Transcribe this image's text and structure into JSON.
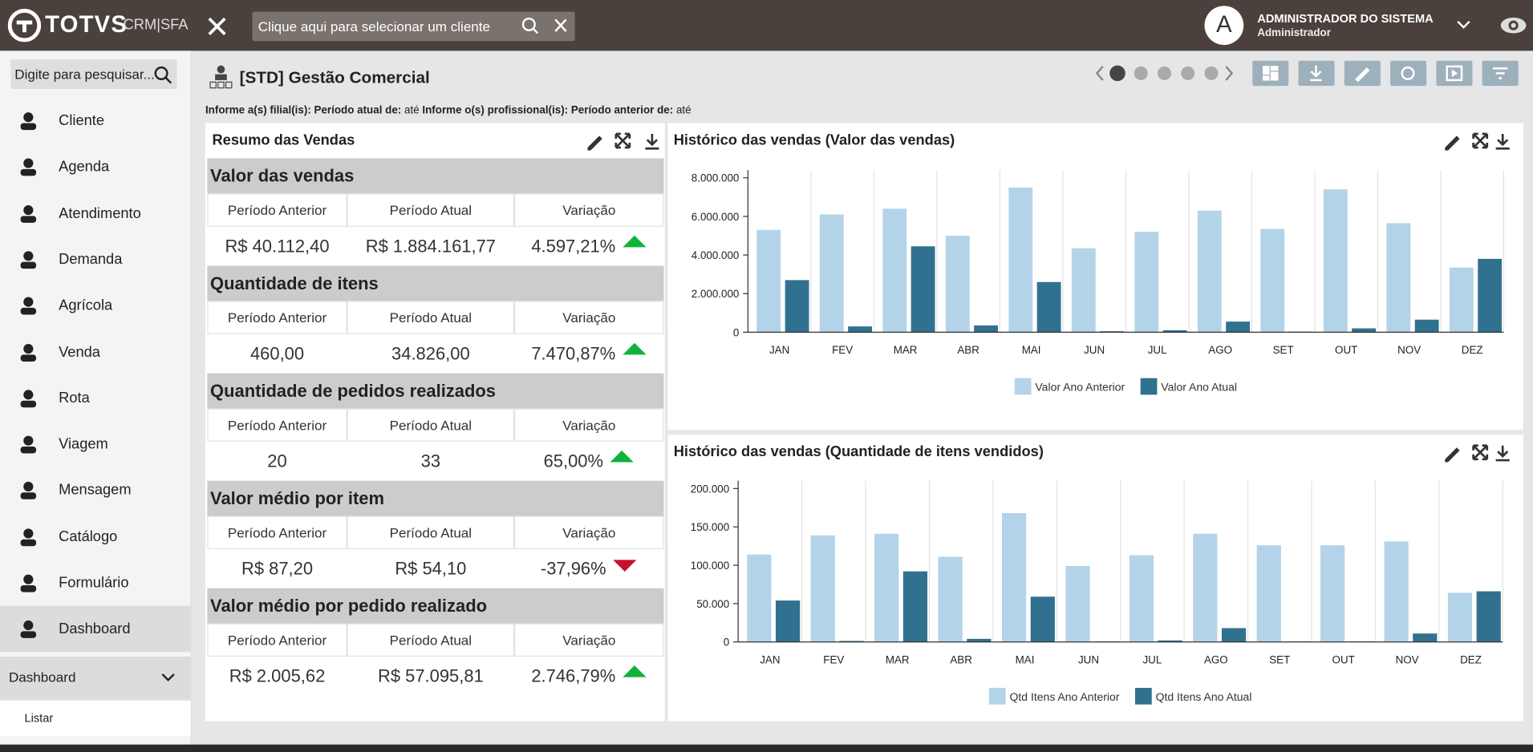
{
  "header": {
    "brand": "TOTVS",
    "product": "CRM|SFA",
    "client_search": "Clique aqui para selecionar um cliente",
    "user_name": "ADMINISTRADOR DO SISTEMA",
    "user_role": "Administrador",
    "avatar": "A"
  },
  "sidebar": {
    "search": "Digite para pesquisar...",
    "items": [
      "Cliente",
      "Agenda",
      "Atendimento",
      "Demanda",
      "Agrícola",
      "Venda",
      "Rota",
      "Viagem",
      "Mensagem",
      "Catálogo",
      "Formulário",
      "Dashboard"
    ],
    "submenu": {
      "title": "Dashboard",
      "items": [
        "Listar"
      ]
    }
  },
  "dashboard": {
    "title": "[STD] Gestão Comercial",
    "filters": [
      {
        "label": "Informe a(s) filial(is): Período atual de:",
        "value": "até"
      },
      {
        "label": "Informe o(s) profissional(is): Período anterior de:",
        "value": "até"
      }
    ]
  },
  "summary": {
    "title": "Resumo das Vendas",
    "columns": [
      "Período Anterior",
      "Período Atual",
      "Variação"
    ],
    "sections": [
      {
        "title": "Valor das vendas",
        "previous": "R$ 40.112,40",
        "current": "R$ 1.884.161,77",
        "variation": "4.597,21%",
        "trend": "up"
      },
      {
        "title": "Quantidade de itens",
        "previous": "460,00",
        "current": "34.826,00",
        "variation": "7.470,87%",
        "trend": "up"
      },
      {
        "title": "Quantidade de pedidos realizados",
        "previous": "20",
        "current": "33",
        "variation": "65,00%",
        "trend": "up"
      },
      {
        "title": "Valor médio por item",
        "previous": "R$ 87,20",
        "current": "R$ 54,10",
        "variation": "-37,96%",
        "trend": "down"
      },
      {
        "title": "Valor médio por pedido realizado",
        "previous": "R$ 2.005,62",
        "current": "R$ 57.095,81",
        "variation": "2.746,79%",
        "trend": "up"
      }
    ]
  },
  "chart_data": [
    {
      "type": "bar",
      "title": "Histórico das vendas (Valor das vendas)",
      "categories": [
        "JAN",
        "FEV",
        "MAR",
        "ABR",
        "MAI",
        "JUN",
        "JUL",
        "AGO",
        "SET",
        "OUT",
        "NOV",
        "DEZ"
      ],
      "series": [
        {
          "name": "Valor Ano Anterior",
          "color": "#b3d3e8",
          "values": [
            5300000,
            6100000,
            6400000,
            5000000,
            7500000,
            4350000,
            5200000,
            6300000,
            5350000,
            7400000,
            5650000,
            3350000
          ]
        },
        {
          "name": "Valor Ano Atual",
          "color": "#30718f",
          "values": [
            2700000,
            300000,
            4450000,
            350000,
            2600000,
            50000,
            100000,
            550000,
            30000,
            200000,
            650000,
            3800000
          ]
        }
      ],
      "ylim": [
        0,
        8000000
      ],
      "yticks": [
        0,
        {
          "value": 2000000,
          "label": "2.000.000"
        },
        {
          "value": 4000000,
          "label": "4.000.000"
        },
        {
          "value": 6000000,
          "label": "6.000.000"
        },
        {
          "value": 8000000,
          "label": "8.000.000"
        }
      ]
    },
    {
      "type": "bar",
      "title": "Histórico das vendas (Quantidade de itens vendidos)",
      "categories": [
        "JAN",
        "FEV",
        "MAR",
        "ABR",
        "MAI",
        "JUN",
        "JUL",
        "AGO",
        "SET",
        "OUT",
        "NOV",
        "DEZ"
      ],
      "series": [
        {
          "name": "Qtd Itens Ano Anterior",
          "color": "#b3d3e8",
          "values": [
            114000,
            139000,
            141000,
            111000,
            168000,
            99000,
            113000,
            141000,
            126000,
            126000,
            131000,
            64000
          ]
        },
        {
          "name": "Qtd Itens Ano Atual",
          "color": "#30718f",
          "values": [
            54000,
            1300,
            92000,
            4000,
            59000,
            600,
            2000,
            18000,
            500,
            500,
            11000,
            66000
          ]
        }
      ],
      "ylim": [
        0,
        200000
      ],
      "yticks": [
        0,
        {
          "value": 50000,
          "label": "50.000"
        },
        {
          "value": 100000,
          "label": "100.000"
        },
        {
          "value": 150000,
          "label": "150.000"
        },
        {
          "value": 200000,
          "label": "200.000"
        }
      ]
    }
  ]
}
